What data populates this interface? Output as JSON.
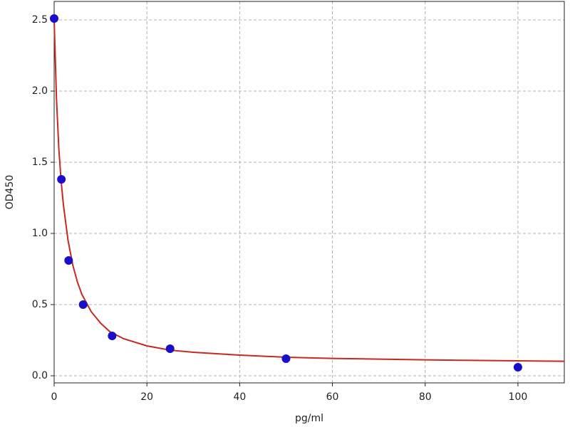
{
  "chart_data": {
    "type": "scatter",
    "x_label": "pg/ml",
    "y_label": "OD450",
    "xlim": [
      0,
      110
    ],
    "ylim": [
      -0.05,
      2.63
    ],
    "xticks": [
      0,
      20,
      40,
      60,
      80,
      100
    ],
    "yticks": [
      {
        "value": 0,
        "label": "0.0"
      },
      0.5,
      {
        "value": 1,
        "label": "1.0"
      },
      1.5,
      {
        "value": 2,
        "label": "2.0"
      },
      2.5
    ],
    "grid": true,
    "series": [
      {
        "type": "scatter",
        "color": "#1a0fc8",
        "x": [
          0,
          1.5625,
          3.125,
          6.25,
          12.5,
          25,
          50,
          100
        ],
        "values": [
          2.51,
          1.38,
          0.81,
          0.5,
          0.28,
          0.19,
          0.12,
          0.06
        ]
      },
      {
        "type": "line",
        "color": "#c8281e",
        "x": [
          0,
          0.5,
          1,
          1.5,
          2,
          3,
          4,
          5,
          6,
          8,
          10,
          12,
          15,
          20,
          25,
          30,
          40,
          50,
          60,
          70,
          80,
          90,
          100,
          110
        ],
        "values": [
          2.5,
          1.95,
          1.6,
          1.37,
          1.2,
          0.95,
          0.78,
          0.66,
          0.57,
          0.45,
          0.37,
          0.31,
          0.26,
          0.21,
          0.18,
          0.165,
          0.145,
          0.13,
          0.122,
          0.117,
          0.112,
          0.108,
          0.105,
          0.102
        ]
      }
    ]
  }
}
